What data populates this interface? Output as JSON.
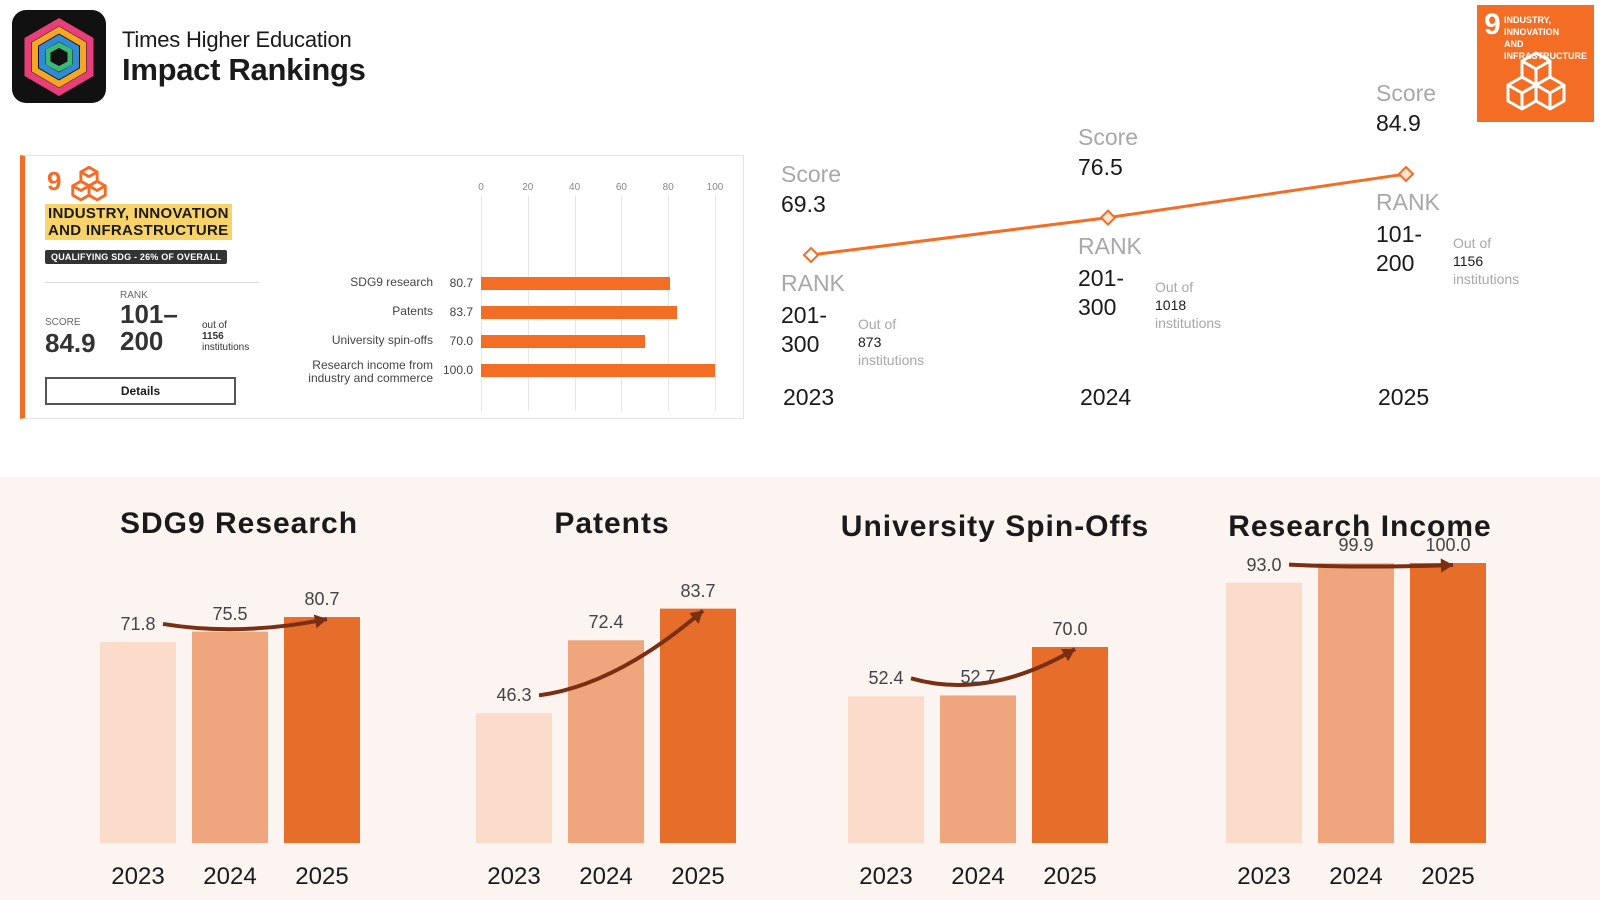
{
  "header": {
    "brand_line1": "Times Higher Education",
    "brand_line2": "Impact Rankings",
    "sdg_badge_number": "9",
    "sdg_badge_text_line1": "INDUSTRY, INNOVATION",
    "sdg_badge_text_line2": "AND INFRASTRUCTURE"
  },
  "card": {
    "number": "9",
    "goal_line1": "INDUSTRY, INNOVATION",
    "goal_line2": "AND INFRASTRUCTURE",
    "qualifying": "QUALIFYING SDG - 26% OF OVERALL",
    "score_label": "SCORE",
    "score_value": "84.9",
    "rank_label": "RANK",
    "rank_line1": "101–",
    "rank_line2": "200",
    "outof_line1": "out of",
    "outof_line2": "1156",
    "outof_line3": "institutions",
    "details_label": "Details",
    "axis_ticks": [
      "0",
      "20",
      "40",
      "60",
      "80",
      "100"
    ],
    "indicators": [
      {
        "label_line1": "SDG9 research",
        "label_line2": "",
        "value": "80.7",
        "num": 80.7
      },
      {
        "label_line1": "Patents",
        "label_line2": "",
        "value": "83.7",
        "num": 83.7
      },
      {
        "label_line1": "University spin-offs",
        "label_line2": "",
        "value": "70.0",
        "num": 70.0
      },
      {
        "label_line1": "Research income from",
        "label_line2": "industry and commerce",
        "value": "100.0",
        "num": 100.0
      }
    ]
  },
  "timeline": {
    "score_label": "Score",
    "rank_label": "RANK",
    "outof_label": "Out of",
    "institutions_label": "institutions",
    "years": [
      {
        "year": "2023",
        "score": "69.3",
        "score_num": 69.3,
        "rank_line1": "201-",
        "rank_line2": "300",
        "out_of": "873"
      },
      {
        "year": "2024",
        "score": "76.5",
        "score_num": 76.5,
        "rank_line1": "201-",
        "rank_line2": "300",
        "out_of": "1018"
      },
      {
        "year": "2025",
        "score": "84.9",
        "score_num": 84.9,
        "rank_line1": "101-",
        "rank_line2": "200",
        "out_of": "1156"
      }
    ]
  },
  "colors": {
    "accent": "#f36d25",
    "bar_2023": "#fbdcca",
    "bar_2024": "#f0a67c",
    "bar_2025": "#e66d2a",
    "arrow": "#7a2e12",
    "panel_bg": "#fbf4f0",
    "goal_highlight": "#f8d36a"
  },
  "chart_data": [
    {
      "type": "bar",
      "title": "SDG9 Research",
      "categories": [
        "2023",
        "2024",
        "2025"
      ],
      "values": [
        71.8,
        75.5,
        80.7
      ],
      "labels": [
        "71.8",
        "75.5",
        "80.7"
      ]
    },
    {
      "type": "bar",
      "title": "Patents",
      "categories": [
        "2023",
        "2024",
        "2025"
      ],
      "values": [
        46.3,
        72.4,
        83.7
      ],
      "labels": [
        "46.3",
        "72.4",
        "83.7"
      ]
    },
    {
      "type": "bar",
      "title": "University Spin-Offs",
      "categories": [
        "2023",
        "2024",
        "2025"
      ],
      "values": [
        52.4,
        52.7,
        70.0
      ],
      "labels": [
        "52.4",
        "52.7",
        "70.0"
      ]
    },
    {
      "type": "bar",
      "title": "Research Income",
      "categories": [
        "2023",
        "2024",
        "2025"
      ],
      "values": [
        93.0,
        99.9,
        100.0
      ],
      "labels": [
        "93.0",
        "99.9",
        "100.0"
      ]
    }
  ]
}
